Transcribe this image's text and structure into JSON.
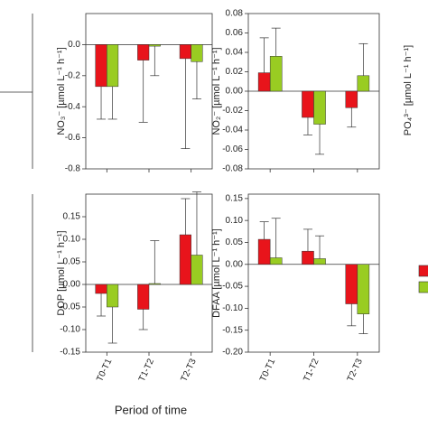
{
  "chart_data": [
    {
      "type": "bar",
      "ylabel": "NO₃⁻ [µmol L⁻¹ h⁻¹]",
      "ylim": [
        -0.8,
        0.2
      ],
      "yticks": [
        {
          "value": 0,
          "label": "0.0"
        },
        {
          "value": -0.2,
          "label": "-0.2"
        },
        {
          "value": -0.4,
          "label": "-0.4"
        },
        {
          "value": -0.6,
          "label": "-0.6"
        },
        {
          "value": -0.8,
          "label": "-0.8"
        }
      ],
      "series": [
        {
          "color": "#e8141b",
          "values": [
            -0.27,
            -0.1,
            -0.09
          ],
          "errors": [
            0.21,
            0.4,
            0.58
          ]
        },
        {
          "color": "#99cc22",
          "values": [
            -0.27,
            -0.01,
            -0.11
          ],
          "errors": [
            0.21,
            0.19,
            0.24
          ]
        }
      ]
    },
    {
      "type": "bar",
      "ylabel": "NO₂⁻ [µmol L⁻¹ h⁻¹]",
      "ylim": [
        -0.08,
        0.08
      ],
      "yticks": [
        {
          "value": 0.08,
          "label": "0.08"
        },
        {
          "value": 0.06,
          "label": "0.06"
        },
        {
          "value": 0.04,
          "label": "0.04"
        },
        {
          "value": 0.02,
          "label": "0.02"
        },
        {
          "value": 0,
          "label": "0.00"
        },
        {
          "value": -0.02,
          "label": "-0.02"
        },
        {
          "value": -0.04,
          "label": "-0.04"
        },
        {
          "value": -0.06,
          "label": "-0.06"
        },
        {
          "value": -0.08,
          "label": "-0.08"
        }
      ],
      "series": [
        {
          "color": "#e8141b",
          "values": [
            0.019,
            -0.027,
            -0.017
          ],
          "errors": [
            0.036,
            0.018,
            0.02
          ]
        },
        {
          "color": "#99cc22",
          "values": [
            0.036,
            -0.034,
            0.016
          ],
          "errors": [
            0.029,
            0.031,
            0.033
          ]
        }
      ]
    },
    {
      "type": "bar",
      "ylabel": "DOP [µmol L⁻¹ h⁻¹]",
      "categories": [
        "T0-T1",
        "T1-T2",
        "T2-T3"
      ],
      "ylim": [
        -0.15,
        0.2
      ],
      "yticks": [
        0.15,
        {
          "value": 0.1,
          "label": "0.10"
        },
        0.05,
        {
          "value": 0,
          "label": "0.00"
        },
        -0.05,
        {
          "value": -0.1,
          "label": "-0.10"
        },
        -0.15
      ],
      "series": [
        {
          "color": "#e8141b",
          "values": [
            -0.02,
            -0.055,
            0.11
          ],
          "errors": [
            0.05,
            0.045,
            0.08
          ]
        },
        {
          "color": "#99cc22",
          "values": [
            -0.05,
            0.002,
            0.065
          ],
          "errors": [
            0.08,
            0.095,
            0.14
          ]
        }
      ]
    },
    {
      "type": "bar",
      "ylabel": "DFAA [µmol L⁻¹ h⁻¹]",
      "categories": [
        "T0-T1",
        "T1-T2",
        "T2-T3"
      ],
      "ylim": [
        -0.2,
        0.16
      ],
      "yticks": [
        0.15,
        {
          "value": 0.1,
          "label": "0.10"
        },
        0.05,
        {
          "value": 0,
          "label": "0.00"
        },
        -0.05,
        {
          "value": -0.1,
          "label": "-0.10"
        },
        -0.15,
        {
          "value": -0.2,
          "label": "-0.20"
        }
      ],
      "series": [
        {
          "color": "#e8141b",
          "values": [
            0.057,
            0.03,
            -0.09
          ],
          "errors": [
            0.04,
            0.05,
            0.05
          ]
        },
        {
          "color": "#99cc22",
          "values": [
            0.015,
            0.013,
            -0.113
          ],
          "errors": [
            0.09,
            0.052,
            0.045
          ]
        }
      ]
    }
  ],
  "xlabel": "Period of time",
  "side_label": "PO₄³⁻ [µmol L⁻¹ h⁻¹]"
}
